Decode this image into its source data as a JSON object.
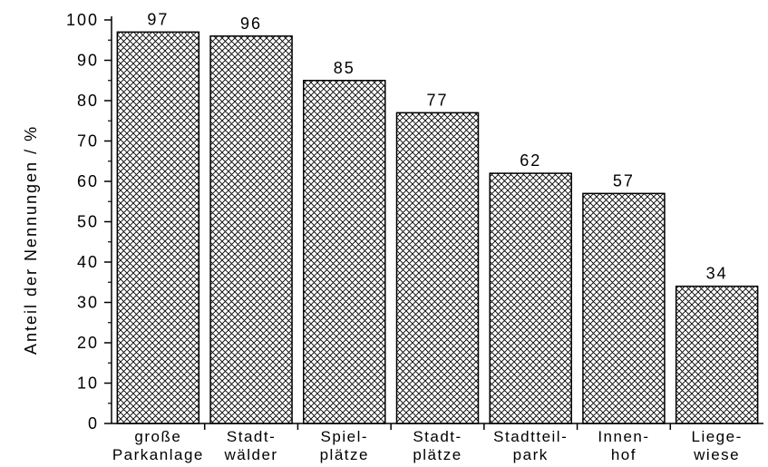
{
  "chart_data": {
    "type": "bar",
    "ylabel": "Anteil der Nennungen / %",
    "ylim": [
      0,
      100
    ],
    "yticks": [
      0,
      10,
      20,
      30,
      40,
      50,
      60,
      70,
      80,
      90,
      100
    ],
    "categories": [
      [
        "große",
        "Parkanlage"
      ],
      [
        "Stadt-",
        "wälder"
      ],
      [
        "Spiel-",
        "plätze"
      ],
      [
        "Stadt-",
        "plätze"
      ],
      [
        "Stadtteil-",
        "park"
      ],
      [
        "Innen-",
        "hof"
      ],
      [
        "Liege-",
        "wiese"
      ]
    ],
    "values": [
      97,
      96,
      85,
      77,
      62,
      57,
      34
    ],
    "bar_pattern": "crosshatch",
    "grid": false
  }
}
